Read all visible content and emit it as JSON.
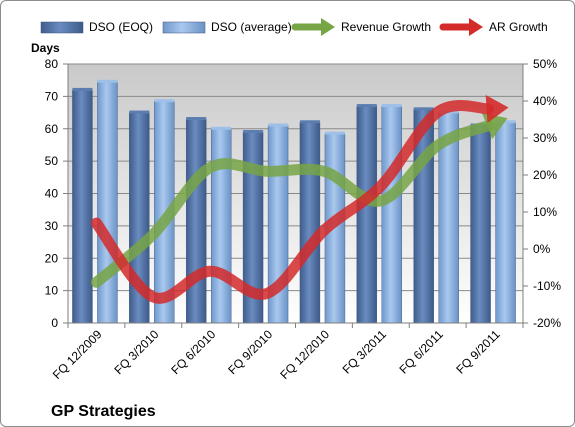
{
  "chart_data": {
    "type": "bar",
    "title": "GP Strategies",
    "ylabel": "Days",
    "ylim": [
      0,
      80
    ],
    "y2lim": [
      -20,
      50
    ],
    "y_ticks": [
      0,
      10,
      20,
      30,
      40,
      50,
      60,
      70,
      80
    ],
    "y2_ticks": [
      "-20%",
      "-10%",
      "0%",
      "10%",
      "20%",
      "30%",
      "40%",
      "50%"
    ],
    "grid": true,
    "legend_position": "top",
    "categories": [
      "FQ 12/2009",
      "FQ 3/2010",
      "FQ 6/2010",
      "FQ 9/2010",
      "FQ 12/2010",
      "FQ 3/2011",
      "FQ 6/2011",
      "FQ 9/2011"
    ],
    "series": [
      {
        "name": "DSO (EOQ)",
        "type": "bar",
        "axis": "left",
        "color": "#4f6fa0",
        "values": [
          72,
          65,
          63,
          59,
          62,
          67,
          66,
          61
        ]
      },
      {
        "name": "DSO (average)",
        "type": "bar",
        "axis": "left",
        "color": "#7ea6d6",
        "values": [
          74.5,
          68.5,
          60,
          61,
          58.5,
          67,
          65,
          62
        ]
      },
      {
        "name": "Revenue Growth",
        "type": "line-arrow",
        "axis": "right",
        "color": "#77a545",
        "values": [
          -9,
          4,
          22,
          21,
          21,
          13,
          28,
          34
        ]
      },
      {
        "name": "AR Growth",
        "type": "line-arrow",
        "axis": "right",
        "color": "#d42a2a",
        "values": [
          7,
          -13,
          -6,
          -12,
          5,
          17,
          37,
          38
        ]
      }
    ]
  }
}
